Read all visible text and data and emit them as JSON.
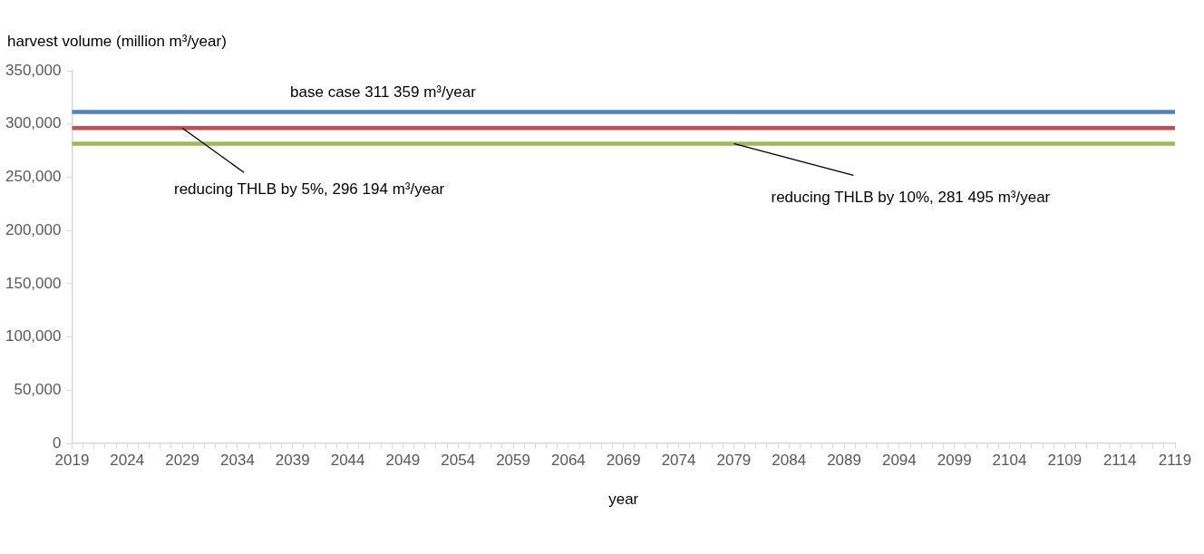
{
  "chart_data": {
    "type": "line",
    "ylabel": "harvest volume (million m³/year)",
    "xlabel": "year",
    "categories": [
      "2019",
      null,
      null,
      null,
      null,
      "2024",
      null,
      null,
      null,
      null,
      "2029",
      null,
      null,
      null,
      null,
      "2034",
      null,
      null,
      null,
      null,
      "2039",
      null,
      null,
      null,
      null,
      "2044",
      null,
      null,
      null,
      null,
      "2049",
      null,
      null,
      null,
      null,
      "2054",
      null,
      null,
      null,
      null,
      "2059",
      null,
      null,
      null,
      null,
      "2064",
      null,
      null,
      null,
      null,
      "2069",
      null,
      null,
      null,
      null,
      "2074",
      null,
      null,
      null,
      null,
      "2079",
      null,
      null,
      null,
      null,
      "2084",
      null,
      null,
      null,
      null,
      "2089",
      null,
      null,
      null,
      null,
      "2094",
      null,
      null,
      null,
      null,
      "2099",
      null,
      null,
      null,
      null,
      "2104",
      null,
      null,
      null,
      null,
      "2109",
      null,
      null,
      null,
      null,
      "2114",
      null,
      null,
      null,
      null,
      "2119"
    ],
    "ylim": [
      0,
      350000
    ],
    "yticks": [
      0,
      {
        "value": 50000,
        "label": "50,000"
      },
      {
        "value": 100000,
        "label": "100,000"
      },
      {
        "value": 150000,
        "label": "150,000"
      },
      {
        "value": 200000,
        "label": "200,000"
      },
      {
        "value": 250000,
        "label": "250,000"
      },
      {
        "value": 300000,
        "label": "300,000"
      },
      {
        "value": 350000,
        "label": "350,000"
      }
    ],
    "series": [
      {
        "color": "#4f81bd",
        "values": [
          311359,
          311359,
          311359,
          311359,
          311359,
          311359,
          311359,
          311359,
          311359,
          311359,
          311359,
          311359,
          311359,
          311359,
          311359,
          311359,
          311359,
          311359,
          311359,
          311359,
          311359,
          311359,
          311359,
          311359,
          311359,
          311359,
          311359,
          311359,
          311359,
          311359,
          311359,
          311359,
          311359,
          311359,
          311359,
          311359,
          311359,
          311359,
          311359,
          311359,
          311359,
          311359,
          311359,
          311359,
          311359,
          311359,
          311359,
          311359,
          311359,
          311359,
          311359,
          311359,
          311359,
          311359,
          311359,
          311359,
          311359,
          311359,
          311359,
          311359,
          311359,
          311359,
          311359,
          311359,
          311359,
          311359,
          311359,
          311359,
          311359,
          311359,
          311359,
          311359,
          311359,
          311359,
          311359,
          311359,
          311359,
          311359,
          311359,
          311359,
          311359,
          311359,
          311359,
          311359,
          311359,
          311359,
          311359,
          311359,
          311359,
          311359,
          311359,
          311359,
          311359,
          311359,
          311359,
          311359,
          311359,
          311359,
          311359,
          311359,
          311359
        ]
      },
      {
        "color": "#c0504d",
        "values": [
          296194,
          296194,
          296194,
          296194,
          296194,
          296194,
          296194,
          296194,
          296194,
          296194,
          296194,
          296194,
          296194,
          296194,
          296194,
          296194,
          296194,
          296194,
          296194,
          296194,
          296194,
          296194,
          296194,
          296194,
          296194,
          296194,
          296194,
          296194,
          296194,
          296194,
          296194,
          296194,
          296194,
          296194,
          296194,
          296194,
          296194,
          296194,
          296194,
          296194,
          296194,
          296194,
          296194,
          296194,
          296194,
          296194,
          296194,
          296194,
          296194,
          296194,
          296194,
          296194,
          296194,
          296194,
          296194,
          296194,
          296194,
          296194,
          296194,
          296194,
          296194,
          296194,
          296194,
          296194,
          296194,
          296194,
          296194,
          296194,
          296194,
          296194,
          296194,
          296194,
          296194,
          296194,
          296194,
          296194,
          296194,
          296194,
          296194,
          296194,
          296194,
          296194,
          296194,
          296194,
          296194,
          296194,
          296194,
          296194,
          296194,
          296194,
          296194,
          296194,
          296194,
          296194,
          296194,
          296194,
          296194,
          296194,
          296194,
          296194,
          296194
        ]
      },
      {
        "color": "#9bbb59",
        "values": [
          281495,
          281495,
          281495,
          281495,
          281495,
          281495,
          281495,
          281495,
          281495,
          281495,
          281495,
          281495,
          281495,
          281495,
          281495,
          281495,
          281495,
          281495,
          281495,
          281495,
          281495,
          281495,
          281495,
          281495,
          281495,
          281495,
          281495,
          281495,
          281495,
          281495,
          281495,
          281495,
          281495,
          281495,
          281495,
          281495,
          281495,
          281495,
          281495,
          281495,
          281495,
          281495,
          281495,
          281495,
          281495,
          281495,
          281495,
          281495,
          281495,
          281495,
          281495,
          281495,
          281495,
          281495,
          281495,
          281495,
          281495,
          281495,
          281495,
          281495,
          281495,
          281495,
          281495,
          281495,
          281495,
          281495,
          281495,
          281495,
          281495,
          281495,
          281495,
          281495,
          281495,
          281495,
          281495,
          281495,
          281495,
          281495,
          281495,
          281495,
          281495,
          281495,
          281495,
          281495,
          281495,
          281495,
          281495,
          281495,
          281495,
          281495,
          281495,
          281495,
          281495,
          281495,
          281495,
          281495,
          281495,
          281495,
          281495,
          281495,
          281495
        ]
      }
    ],
    "annotations": [
      {
        "text": "base case 311 359 m³/year",
        "x": "2049",
        "y": 311359
      },
      {
        "text": "reducing THLB by 5%, 296 194 m³/year",
        "x": "2029",
        "y": 296194
      },
      {
        "text": "reducing THLB by 10%, 281 495 m³/year",
        "x": "2079",
        "y": 281495
      }
    ],
    "grid": false,
    "legend": false,
    "marker": "none",
    "line_style": "solid"
  }
}
